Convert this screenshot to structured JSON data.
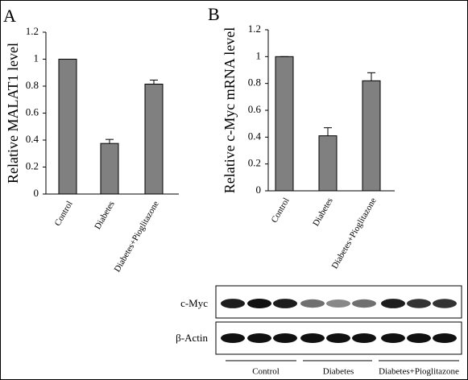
{
  "chart_data": [
    {
      "type": "bar",
      "panel": "A",
      "y_label": "Relative MALAT1 level",
      "categories": [
        "Control",
        "Diabetes",
        "Diabetes+Pioglitazone"
      ],
      "values": [
        1,
        0.375,
        0.815
      ],
      "errors": [
        0,
        0.03,
        0.03
      ],
      "color": "#808080",
      "ylim": [
        0,
        1.2
      ],
      "yticks": [
        0,
        0.2,
        0.4,
        0.6,
        0.8,
        1,
        1.2
      ],
      "grid": false
    },
    {
      "type": "bar",
      "panel": "B",
      "y_label": "Relative c-Myc mRNA level",
      "categories": [
        "Control",
        "Diabetes",
        "Diabetes+Pioglitazone"
      ],
      "values": [
        1,
        0.41,
        0.82
      ],
      "errors": [
        0,
        0.06,
        0.06
      ],
      "color": "#808080",
      "ylim": [
        0,
        1.2
      ],
      "yticks": [
        0,
        0.2,
        0.4,
        0.6,
        0.8,
        1,
        1.2
      ],
      "grid": false
    }
  ],
  "blot": {
    "rows": [
      "c-Myc",
      "β-Actin"
    ],
    "groups": [
      "Control",
      "Diabetes",
      "Diabetes+Pioglitazone"
    ]
  }
}
